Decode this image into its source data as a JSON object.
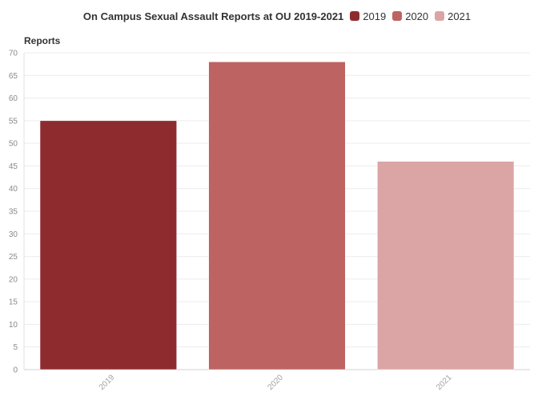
{
  "chart_data": {
    "type": "bar",
    "title": "On Campus Sexual Assault Reports at OU 2019-2021",
    "ylabel": "Reports",
    "xlabel": "",
    "categories": [
      "2019",
      "2020",
      "2021"
    ],
    "values": [
      55,
      68,
      46
    ],
    "colors": [
      "#8e2b2f",
      "#bd6362",
      "#dba5a6"
    ],
    "ylim": [
      0,
      70
    ],
    "yticks": [
      0,
      5,
      10,
      15,
      20,
      25,
      30,
      35,
      40,
      45,
      50,
      55,
      60,
      65,
      70
    ],
    "grid": true,
    "legend": {
      "placement": "top",
      "entries": [
        "2019",
        "2020",
        "2021"
      ]
    }
  }
}
